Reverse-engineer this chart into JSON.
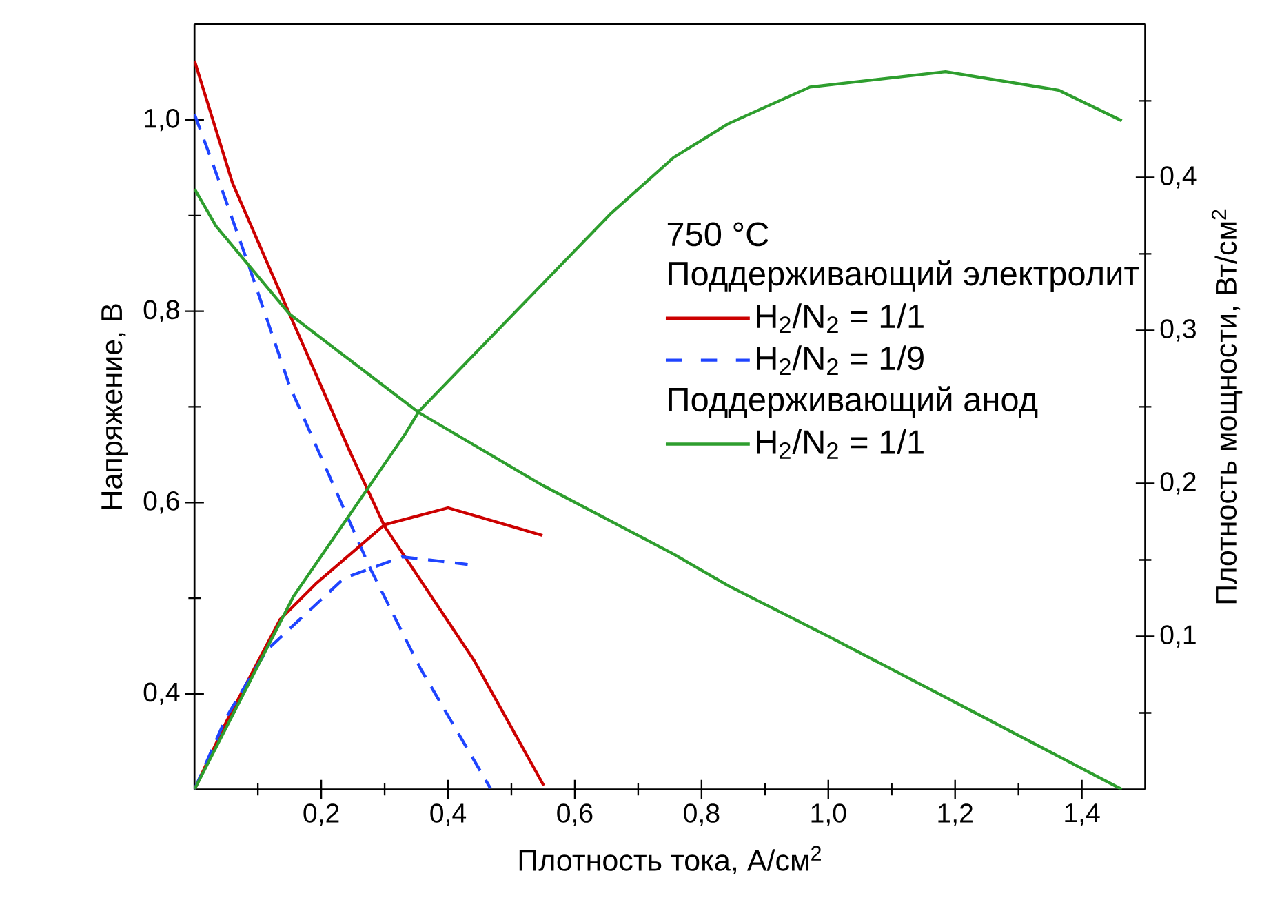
{
  "chart_data": {
    "type": "line",
    "xlabel": "Плотность тока, А/см$^{2}$",
    "ylabel": "Напряжение, В",
    "y2label": "Плотность мощности, Вт/см$^{2}$",
    "legend_title": "750 °C",
    "annotations": [
      "Поддерживающий электролит",
      "Поддерживающий анод"
    ],
    "legend": "right",
    "xlim": [
      0,
      1.5
    ],
    "ylim": [
      0.3,
      1.1
    ],
    "y2lim": [
      0,
      0.5
    ],
    "xticks": [
      {
        "value": 0.1,
        "label": null
      },
      {
        "value": 0.2,
        "label": "0,2"
      },
      {
        "value": 0.3,
        "label": null
      },
      {
        "value": 0.4,
        "label": "0,4"
      },
      {
        "value": 0.5,
        "label": null
      },
      {
        "value": 0.6,
        "label": "0,6"
      },
      {
        "value": 0.7,
        "label": null
      },
      {
        "value": 0.8,
        "label": "0,8"
      },
      {
        "value": 0.9,
        "label": null
      },
      {
        "value": 1.0,
        "label": "1,0"
      },
      {
        "value": 1.1,
        "label": null
      },
      {
        "value": 1.2,
        "label": "1,2"
      },
      {
        "value": 1.3,
        "label": null
      },
      {
        "value": 1.4,
        "label": "1,4"
      }
    ],
    "yticks": [
      {
        "value": 0.4,
        "label": "0,4"
      },
      {
        "value": 0.5,
        "label": null
      },
      {
        "value": 0.6,
        "label": "0,6"
      },
      {
        "value": 0.7,
        "label": null
      },
      {
        "value": 0.8,
        "label": "0,8"
      },
      {
        "value": 0.9,
        "label": null
      },
      {
        "value": 1.0,
        "label": "1,0"
      }
    ],
    "y2ticks": [
      {
        "value": 0.05,
        "label": null
      },
      {
        "value": 0.1,
        "label": "0,1"
      },
      {
        "value": 0.15,
        "label": null
      },
      {
        "value": 0.2,
        "label": "0,2"
      },
      {
        "value": 0.25,
        "label": null
      },
      {
        "value": 0.3,
        "label": "0,3"
      },
      {
        "value": 0.35,
        "label": null
      },
      {
        "value": 0.4,
        "label": "0,4"
      },
      {
        "value": 0.45,
        "label": null
      }
    ],
    "series": [
      {
        "name": "H$_{2}$/N$_{2}$ = 1/1",
        "color": "#cc0000",
        "line_style": "solid",
        "x": [
          0,
          0.06,
          0.15,
          0.246,
          0.3,
          0.441,
          0.551
        ],
        "values": [
          1.062,
          0.934,
          0.797,
          0.652,
          0.575,
          0.435,
          0.304
        ]
      },
      {
        "color": "#cc0000",
        "line_style": "solid",
        "axis": "y2",
        "x": [
          0,
          0.05,
          0.135,
          0.193,
          0.3,
          0.4,
          0.549
        ],
        "values": [
          0,
          0.044,
          0.111,
          0.135,
          0.173,
          0.184,
          0.166
        ]
      },
      {
        "name": "H$_{2}$/N$_{2}$ = 1/9",
        "color": "#1f44ff",
        "line_style": "dashed",
        "x": [
          0,
          0.028,
          0.085,
          0.15,
          0.278,
          0.356,
          0.467
        ],
        "values": [
          1.006,
          0.956,
          0.849,
          0.722,
          0.53,
          0.427,
          0.301
        ]
      },
      {
        "color": "#1f44ff",
        "line_style": "dashed",
        "axis": "y2",
        "x": [
          0,
          0.05,
          0.114,
          0.236,
          0.328,
          0.431
        ],
        "values": [
          0,
          0.047,
          0.091,
          0.138,
          0.152,
          0.147
        ]
      },
      {
        "name": "H$_{2}$/N$_{2}$ = 1/1",
        "color": "#2e9e2e",
        "line_style": "solid",
        "x": [
          0,
          0.034,
          0.15,
          0.354,
          0.549,
          0.756,
          0.842,
          1.003,
          1.206,
          1.463
        ],
        "values": [
          0.928,
          0.889,
          0.797,
          0.694,
          0.618,
          0.546,
          0.513,
          0.459,
          0.389,
          0.3
        ]
      },
      {
        "color": "#2e9e2e",
        "line_style": "solid",
        "axis": "y2",
        "x": [
          0,
          0.156,
          0.332,
          0.354,
          0.656,
          0.756,
          0.842,
          0.971,
          1.185,
          1.363,
          1.463
        ],
        "values": [
          0,
          0.126,
          0.232,
          0.247,
          0.376,
          0.413,
          0.435,
          0.459,
          0.469,
          0.457,
          0.437
        ]
      }
    ]
  }
}
